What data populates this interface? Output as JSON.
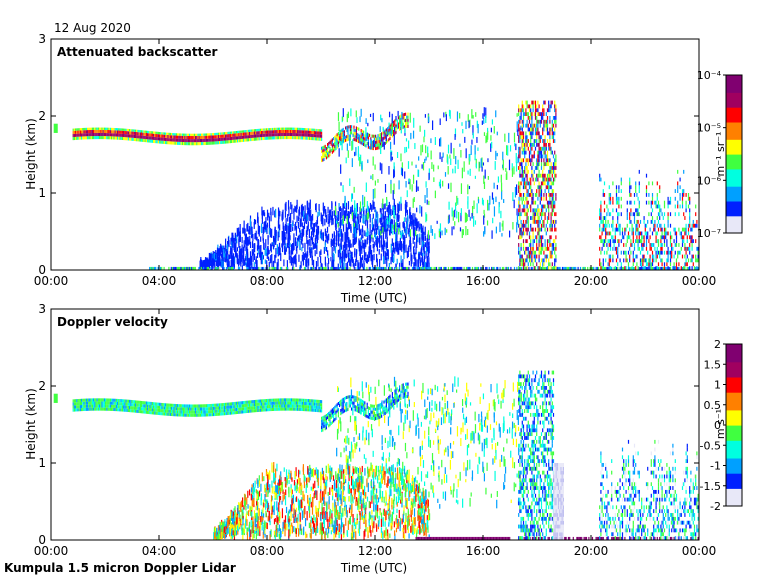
{
  "date": "12 Aug 2020",
  "footer": "Kumpula 1.5 micron Doppler Lidar",
  "x_ticks": [
    "00:00",
    "04:00",
    "08:00",
    "12:00",
    "16:00",
    "20:00",
    "00:00"
  ],
  "chart_data": [
    {
      "type": "heatmap",
      "title": "Attenuated backscatter",
      "xlabel": "Time (UTC)",
      "ylabel": "Height (km)",
      "xlim_hours": [
        0,
        24
      ],
      "ylim": [
        0,
        3
      ],
      "y_ticks": [
        "0",
        "1",
        "2",
        "3"
      ],
      "colorbar": {
        "label": "m⁻¹ sr⁻¹",
        "scale": "log",
        "range": [
          1e-07,
          0.0001
        ],
        "ticks": [
          "10⁻⁴",
          "10⁻⁵",
          "10⁻⁶",
          "10⁻⁷"
        ]
      },
      "colormap": [
        "#e8e8f8",
        "#0020ff",
        "#00a0ff",
        "#00ffe0",
        "#40ff40",
        "#ffff00",
        "#ff8000",
        "#ff0000",
        "#a00060",
        "#800070"
      ],
      "features": [
        {
          "layer": "main aerosol layer top",
          "start_h": 0.8,
          "end_h": 10,
          "height_km": 1.8,
          "level": "high"
        },
        {
          "layer": "rising layer",
          "start_h": 10,
          "end_h": 13.2,
          "height_km_from": 1.6,
          "height_km_to": 1.9,
          "level": "high"
        },
        {
          "layer": "boundary layer",
          "start_h": 5.5,
          "end_h": 14,
          "height_km_from": 0,
          "height_km_to": 0.8,
          "level": "low"
        },
        {
          "layer": "evening cloud",
          "start_h": 17.3,
          "end_h": 18.6,
          "height_km_from": 0,
          "height_km_to": 2.2,
          "level": "high"
        },
        {
          "layer": "night clouds",
          "start_h": 20.5,
          "end_h": 24,
          "height_km_from": 0,
          "height_km_to": 1.3,
          "level": "mixed"
        }
      ]
    },
    {
      "type": "heatmap",
      "title": "Doppler velocity",
      "xlabel": "Time (UTC)",
      "ylabel": "Height (km)",
      "xlim_hours": [
        0,
        24
      ],
      "ylim": [
        0,
        3
      ],
      "y_ticks": [
        "0",
        "1",
        "2",
        "3"
      ],
      "colorbar": {
        "label": "m s⁻¹",
        "scale": "linear",
        "range": [
          -2,
          2
        ],
        "ticks": [
          "2",
          "1.5",
          "1",
          "0.5",
          "0",
          "-0.5",
          "-1",
          "-1.5",
          "-2"
        ]
      },
      "colormap": [
        "#e8e8f8",
        "#0020ff",
        "#00a0ff",
        "#00ffe0",
        "#40ff40",
        "#ffff00",
        "#ff8000",
        "#ff0000",
        "#a00060",
        "#800070"
      ],
      "features": [
        {
          "layer": "main layer",
          "start_h": 0.8,
          "end_h": 10,
          "height_km": 1.8,
          "velocity_ms": -0.1
        },
        {
          "layer": "convective boundary layer",
          "start_h": 6,
          "end_h": 14,
          "height_km_from": 0,
          "height_km_to": 0.9,
          "velocity_ms_range": [
            -1,
            1.5
          ]
        },
        {
          "layer": "evening downdraft",
          "start_h": 18.6,
          "end_h": 19,
          "height_km_from": 0,
          "height_km_to": 1.0,
          "velocity_ms": -1.8
        },
        {
          "layer": "surface updraft band",
          "start_h": 13.5,
          "end_h": 17,
          "height_km": 0.02,
          "velocity_ms": 2
        }
      ]
    }
  ]
}
